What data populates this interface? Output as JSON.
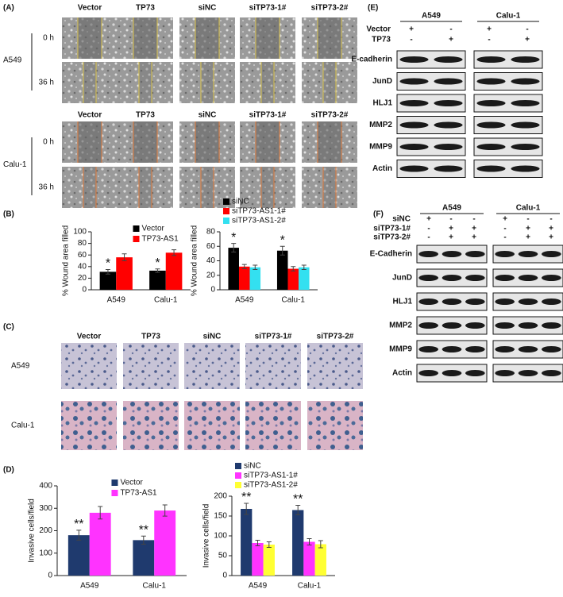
{
  "panel_labels": [
    "(A)",
    "(B)",
    "(C)",
    "(D)",
    "(E)",
    "(F)"
  ],
  "panel_a": {
    "columns": [
      "Vector",
      "TP73",
      "siNC",
      "siTP73-1#",
      "siTP73-2#"
    ],
    "cell_lines": [
      "A549",
      "Calu-1"
    ],
    "times": [
      "0 h",
      "36 h"
    ]
  },
  "panel_c": {
    "columns": [
      "Vector",
      "TP73",
      "siNC",
      "siTP73-1#",
      "siTP73-2#"
    ],
    "cell_lines": [
      "A549",
      "Calu-1"
    ]
  },
  "panel_e": {
    "cell_lines": [
      "A549",
      "Calu-1"
    ],
    "conditions": [
      {
        "name": "Vector",
        "signs": [
          "+",
          "-",
          "+",
          "-"
        ]
      },
      {
        "name": "TP73",
        "signs": [
          "-",
          "+",
          "-",
          "+"
        ]
      }
    ],
    "proteins": [
      "E-cadherin",
      "JunD",
      "HLJ1",
      "MMP2",
      "MMP9",
      "Actin"
    ]
  },
  "panel_f": {
    "cell_lines": [
      "A549",
      "Calu-1"
    ],
    "conditions": [
      {
        "name": "siNC",
        "signs": [
          "+",
          "-",
          "-",
          "+",
          "-",
          "-"
        ]
      },
      {
        "name": "siTP73-1#",
        "signs": [
          "-",
          "+",
          "+",
          "-",
          "+",
          "+"
        ]
      },
      {
        "name": "siTP73-2#",
        "signs": [
          "-",
          "+",
          "+",
          "-",
          "+",
          "+"
        ]
      }
    ],
    "proteins": [
      "E-Cadherin",
      "JunD",
      "HLJ1",
      "MMP2",
      "MMP9",
      "Actin"
    ]
  },
  "chart_data": [
    {
      "type": "bar",
      "ylabel": "% Wound area filled",
      "categories": [
        "A549",
        "Calu-1"
      ],
      "ylim": [
        0,
        100
      ],
      "yticks": [
        0,
        20,
        40,
        60,
        80,
        100
      ],
      "legend": "upper right",
      "series": [
        {
          "name": "Vector",
          "color": "#000000",
          "values": [
            31,
            33
          ],
          "errors": [
            4,
            3
          ],
          "annotations": [
            "*",
            "*"
          ]
        },
        {
          "name": "TP73-AS1",
          "color": "#ff0000",
          "values": [
            56,
            64
          ],
          "errors": [
            6,
            5
          ]
        }
      ]
    },
    {
      "type": "bar",
      "ylabel": "% Wound area filled",
      "categories": [
        "A549",
        "Calu-1"
      ],
      "ylim": [
        0,
        80
      ],
      "yticks": [
        0,
        20,
        40,
        60,
        80
      ],
      "legend": "top",
      "series": [
        {
          "name": "siNC",
          "color": "#000000",
          "values": [
            58,
            54
          ],
          "errors": [
            6,
            6
          ],
          "annotations": [
            "*",
            "*"
          ]
        },
        {
          "name": "siTP73-AS1-1#",
          "color": "#ff0000",
          "values": [
            32,
            29
          ],
          "errors": [
            3,
            3
          ]
        },
        {
          "name": "siTP73-AS1-2#",
          "color": "#33e0f0",
          "values": [
            31,
            31
          ],
          "errors": [
            3,
            3
          ]
        }
      ]
    },
    {
      "type": "bar",
      "ylabel": "Invasive cells/field",
      "categories": [
        "A549",
        "Calu-1"
      ],
      "ylim": [
        0,
        400
      ],
      "yticks": [
        0,
        100,
        200,
        300,
        400
      ],
      "legend": "upper right",
      "series": [
        {
          "name": "Vector",
          "color": "#1f3a6e",
          "values": [
            180,
            158
          ],
          "errors": [
            22,
            18
          ],
          "annotations": [
            "**",
            "**"
          ]
        },
        {
          "name": "TP73-AS1",
          "color": "#ff33ff",
          "values": [
            280,
            290
          ],
          "errors": [
            28,
            25
          ]
        }
      ]
    },
    {
      "type": "bar",
      "ylabel": "Invasive cells/field",
      "categories": [
        "A549",
        "Calu-1"
      ],
      "ylim": [
        0,
        200
      ],
      "yticks": [
        0,
        50,
        100,
        150,
        200
      ],
      "legend": "top",
      "series": [
        {
          "name": "siNC",
          "color": "#1f3a6e",
          "values": [
            168,
            165
          ],
          "errors": [
            14,
            12
          ],
          "annotations": [
            "**",
            "**"
          ]
        },
        {
          "name": "siTP73-AS1-1#",
          "color": "#ff33ff",
          "values": [
            82,
            85
          ],
          "errors": [
            7,
            8
          ]
        },
        {
          "name": "siTP73-AS1-2#",
          "color": "#ffff33",
          "values": [
            78,
            79
          ],
          "errors": [
            7,
            9
          ]
        }
      ]
    }
  ]
}
